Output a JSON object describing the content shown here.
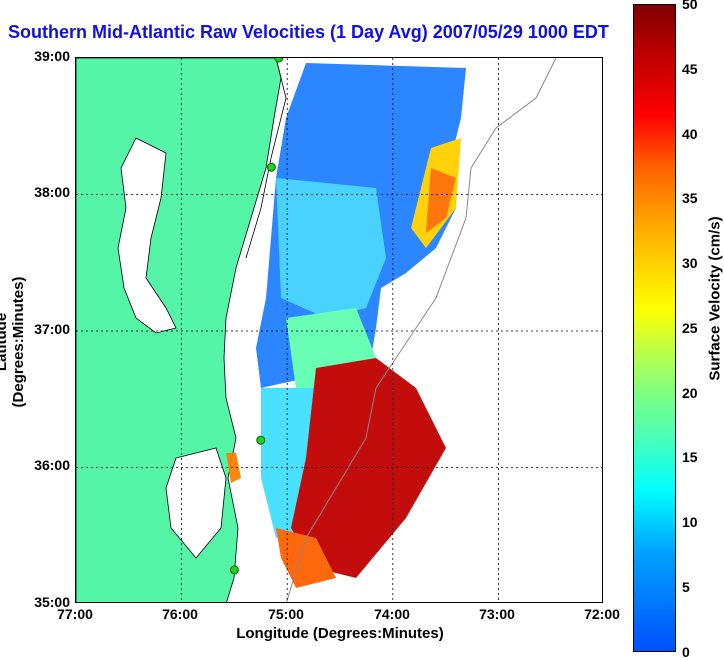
{
  "title": "Southern Mid-Atlantic Raw Velocities (1 Day Avg) 2007/05/29 1000 EDT",
  "map": {
    "xlabel": "Longitude (Degrees:Minutes)",
    "ylabel": "Latitude (Degrees:Minutes)",
    "x_ticks": [
      "77:00",
      "76:00",
      "75:00",
      "74:00",
      "73:00",
      "72:00"
    ],
    "y_ticks": [
      "39:00",
      "38:00",
      "37:00",
      "36:00",
      "35:00"
    ],
    "lon_range": [
      -77,
      -72
    ],
    "lat_range": [
      35,
      39
    ],
    "grid": "dotted",
    "land_color": "#55f5a8",
    "stations": [
      {
        "lon": -75.08,
        "lat": 39.0
      },
      {
        "lon": -75.15,
        "lat": 38.2
      },
      {
        "lon": -75.25,
        "lat": 36.2
      },
      {
        "lon": -75.5,
        "lat": 35.25
      }
    ]
  },
  "colorbar": {
    "label": "Surface Velocity (cm/s)",
    "ticks": [
      "50",
      "45",
      "40",
      "35",
      "30",
      "25",
      "20",
      "15",
      "10",
      "5",
      "0"
    ],
    "range": [
      0,
      50
    ],
    "colormap": "jet"
  }
}
